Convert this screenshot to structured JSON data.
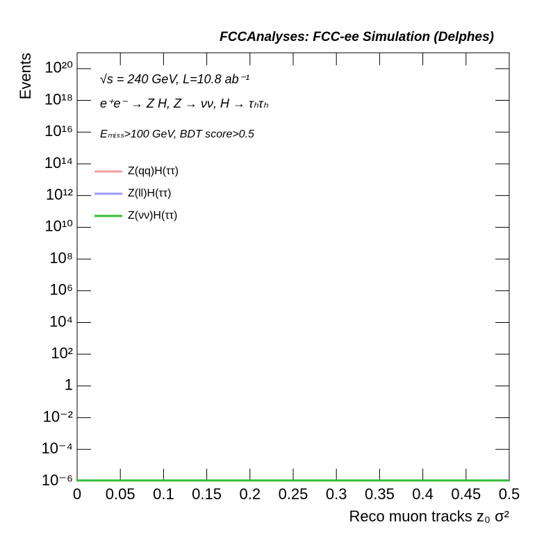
{
  "chart_data": {
    "type": "line",
    "title": "FCCAnalyses: FCC-ee Simulation (Delphes)",
    "annotations": [
      "√s = 240 GeV, L=10.8 ab⁻¹",
      "e⁺e⁻ → Z H, Z → νν, H → τₕτₕ",
      "Eₘᵢₛₛ>100 GeV, BDT score>0.5"
    ],
    "x_label": "Reco muon tracks z₀ σ²",
    "y_label": "Events",
    "log_y": true,
    "x": [
      0,
      0.5
    ],
    "series": [
      {
        "name": "Z(qq)H(ττ)",
        "color": "#f4a0a0",
        "values": [
          1e-06,
          1e-06
        ]
      },
      {
        "name": "Z(ll)H(ττ)",
        "color": "#9a9aff",
        "values": [
          1e-06,
          1e-06
        ]
      },
      {
        "name": "Z(νν)H(ττ)",
        "color": "#33bb33",
        "values": [
          1e-06,
          1e-06
        ]
      }
    ],
    "xlim": [
      0,
      0.5
    ],
    "xticks": [
      0,
      0.05,
      0.1,
      0.15,
      0.2,
      0.25,
      0.3,
      0.35,
      0.4,
      0.45,
      0.5
    ],
    "ylim": [
      1e-06,
      1e+21
    ],
    "yticks": [
      {
        "value": 1e-06,
        "label": "10⁻⁶"
      },
      {
        "value": 0.0001,
        "label": "10⁻⁴"
      },
      {
        "value": 0.01,
        "label": "10⁻²"
      },
      1,
      {
        "value": 100.0,
        "label": "10²"
      },
      {
        "value": 10000.0,
        "label": "10⁴"
      },
      {
        "value": 1000000.0,
        "label": "10⁶"
      },
      {
        "value": 100000000.0,
        "label": "10⁸"
      },
      {
        "value": 10000000000.0,
        "label": "10¹⁰"
      },
      {
        "value": 1000000000000.0,
        "label": "10¹²"
      },
      {
        "value": 100000000000000.0,
        "label": "10¹⁴"
      },
      {
        "value": 1e+16,
        "label": "10¹⁶"
      },
      {
        "value": 1e+18,
        "label": "10¹⁸"
      },
      {
        "value": 1e+20,
        "label": "10²⁰"
      }
    ]
  }
}
